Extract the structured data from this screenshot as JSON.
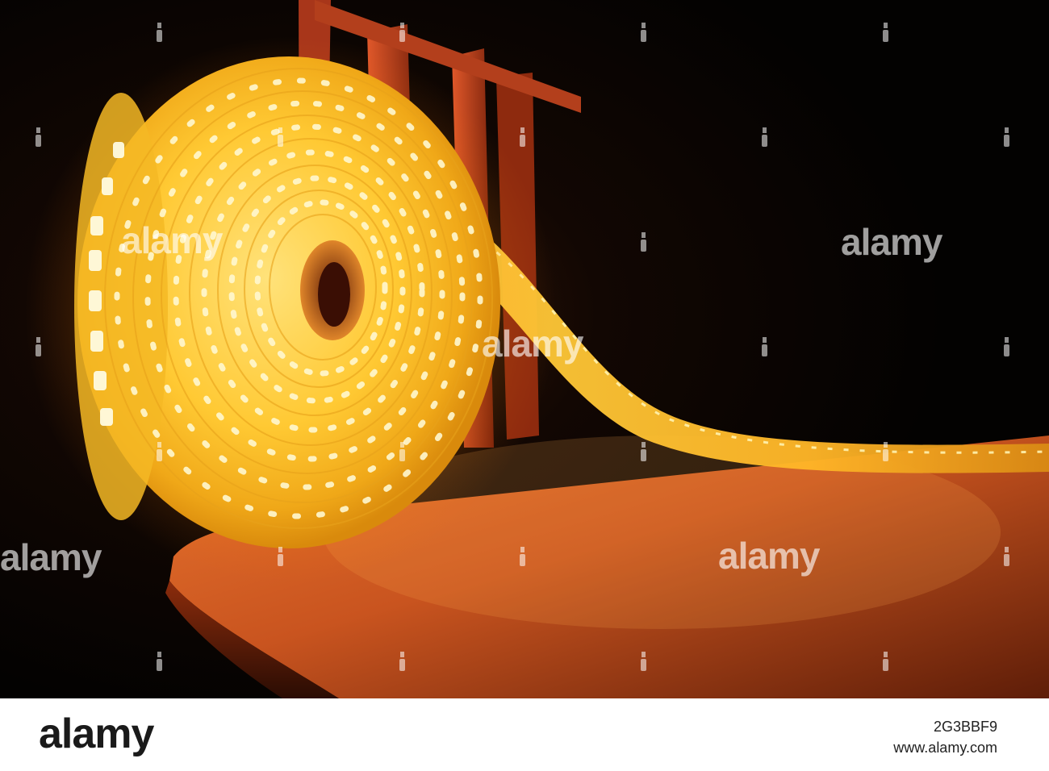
{
  "watermark": {
    "text": "alamy"
  },
  "footer": {
    "logo": "alamy",
    "image_id": "2G3BBF9",
    "url": "www.alamy.com"
  },
  "scene": {
    "subject": "coiled-led-strip",
    "colors": {
      "led_glow": "#ffd54a",
      "led_core": "#fff7c2",
      "chair_wood": "#c8421a",
      "seat_surface": "#d9602c",
      "background": "#050302"
    }
  }
}
